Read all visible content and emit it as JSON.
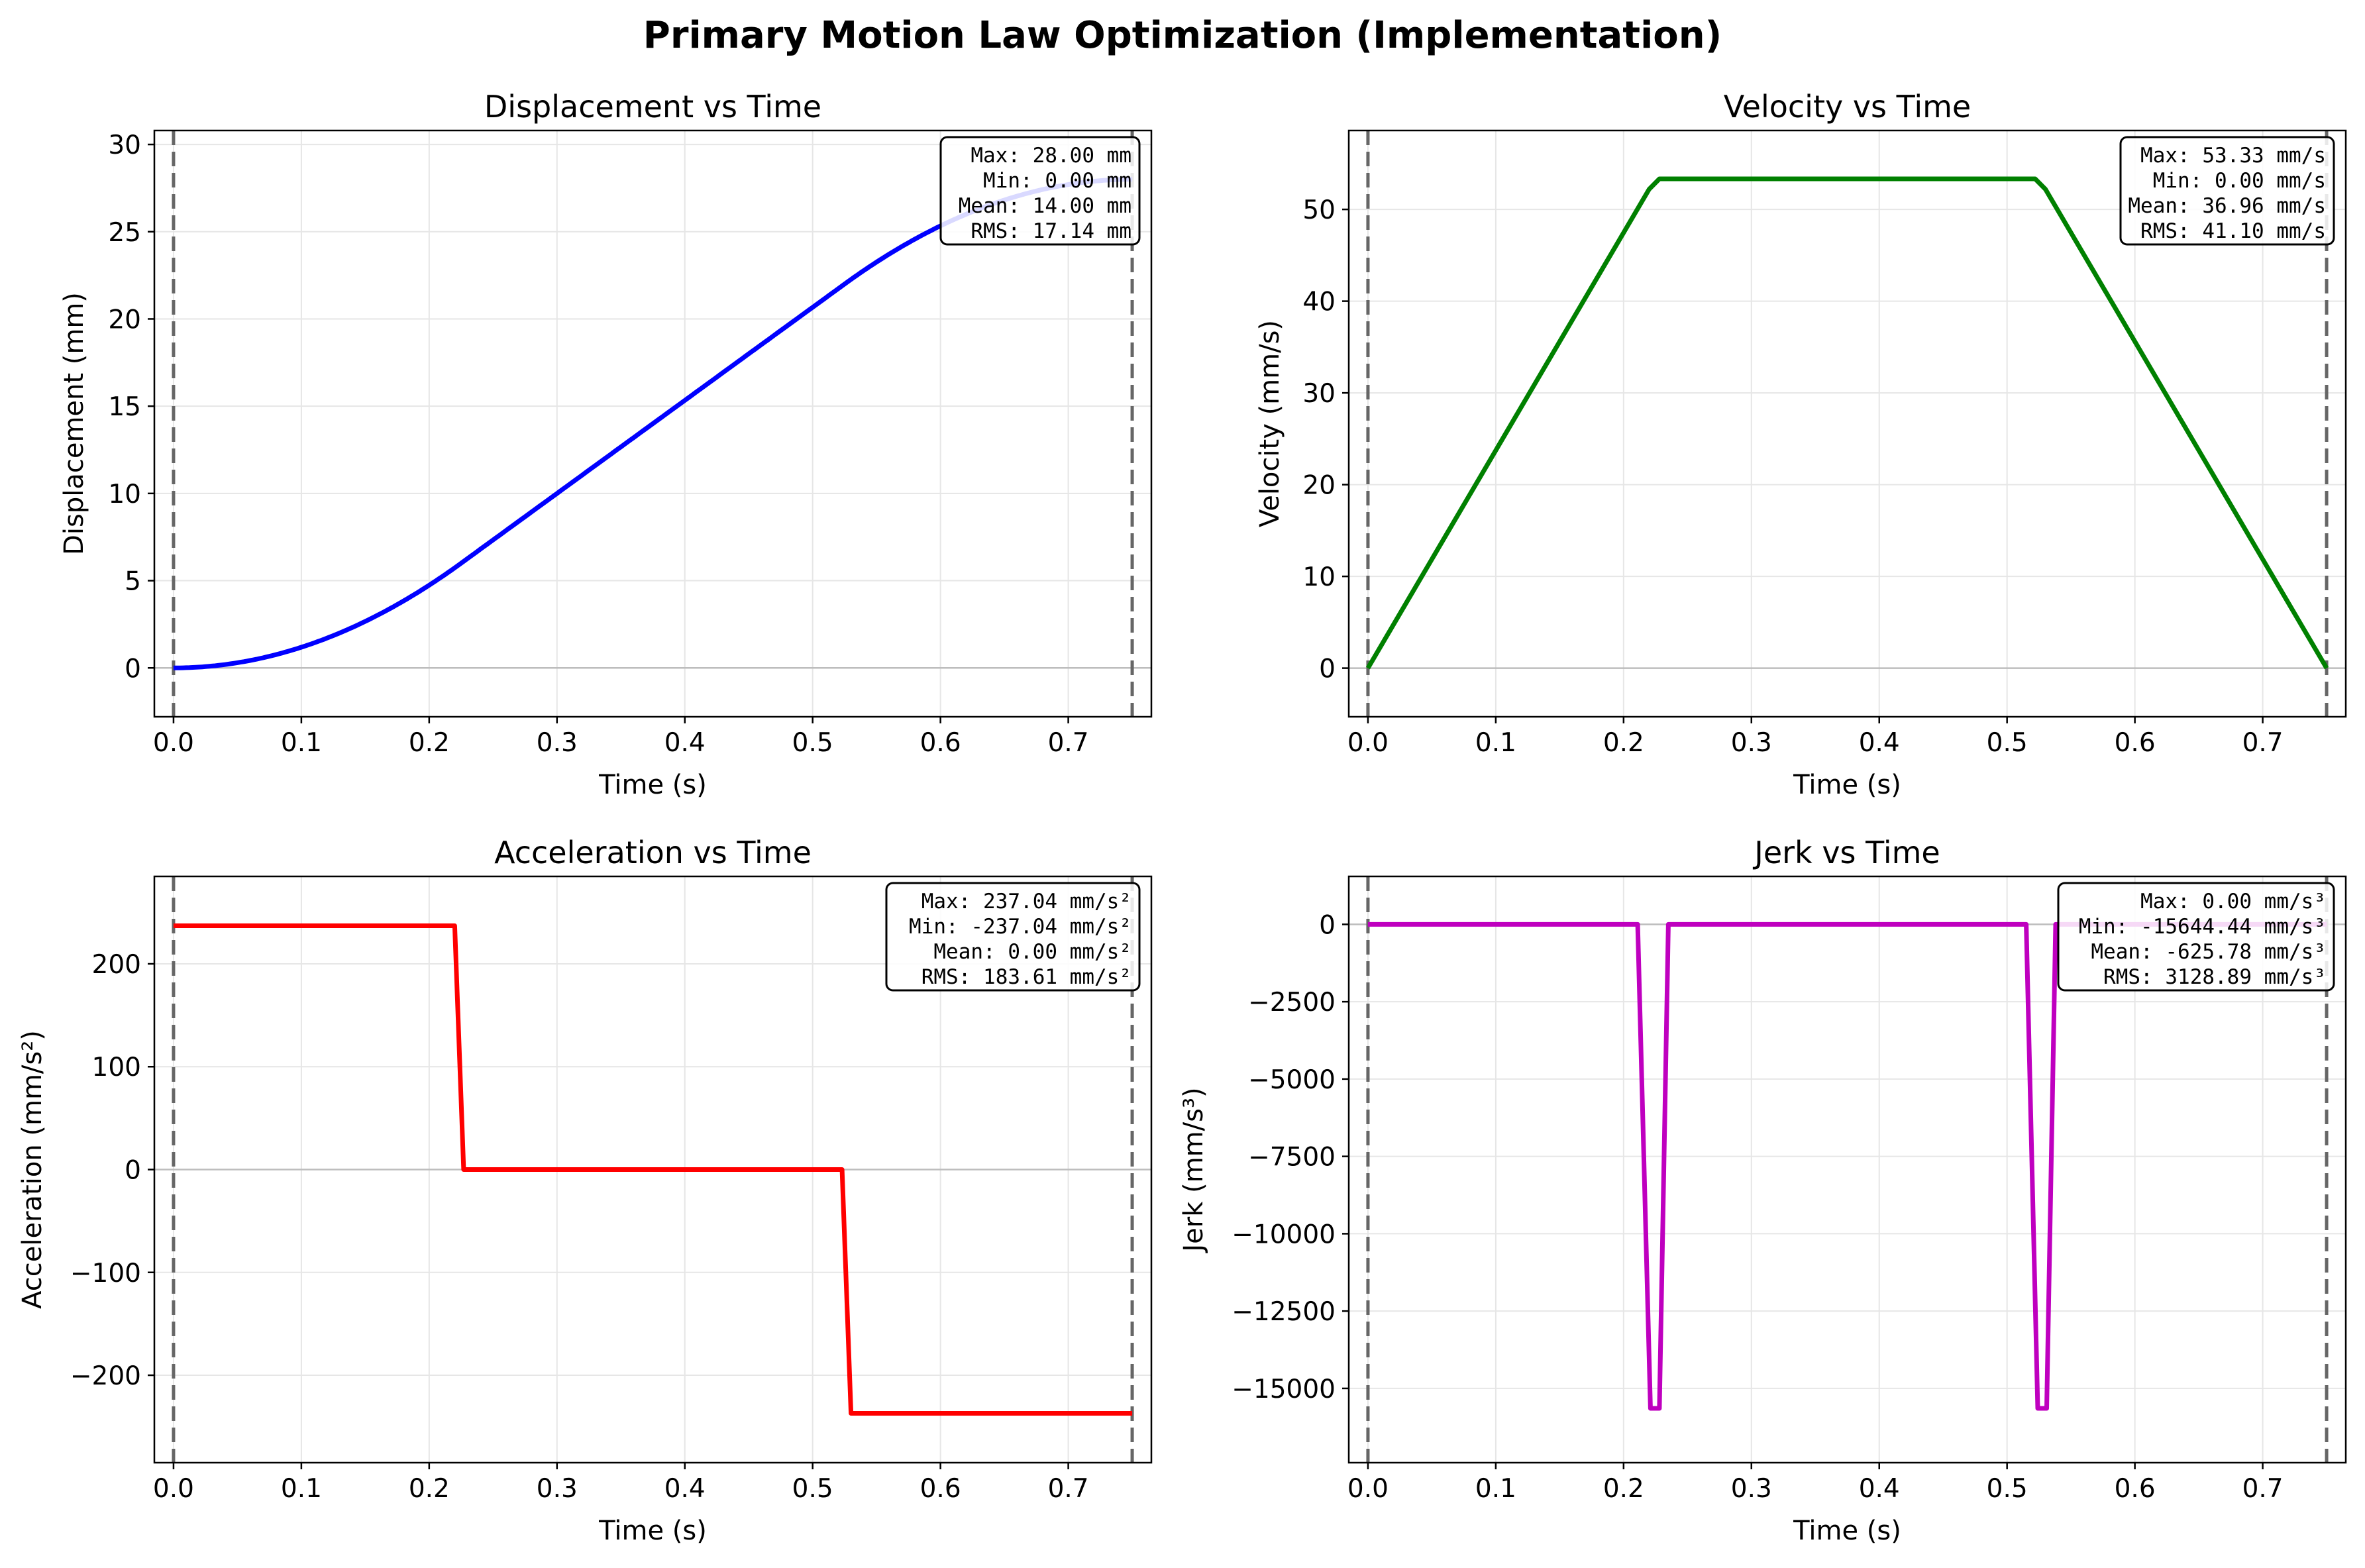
{
  "figure": {
    "title": "Primary Motion Law Optimization (Implementation)"
  },
  "colors": {
    "displacement": "#0000ff",
    "velocity": "#008000",
    "acceleration": "#ff0000",
    "jerk": "#bf00bf",
    "grid": "#e6e6e6",
    "marker": "#666666"
  },
  "chart_data": [
    {
      "type": "line",
      "title": "Displacement vs Time",
      "xlabel": "Time (s)",
      "ylabel": "Displacement (mm)",
      "xlim": [
        -0.015,
        0.765
      ],
      "ylim": [
        -2.8,
        30.8
      ],
      "xticks": [
        "0.0",
        "0.1",
        "0.2",
        "0.3",
        "0.4",
        "0.5",
        "0.6",
        "0.7"
      ],
      "xtick_values": [
        0,
        0.1,
        0.2,
        0.3,
        0.4,
        0.5,
        0.6,
        0.7
      ],
      "yticks": [
        "0",
        "5",
        "10",
        "15",
        "20",
        "25",
        "30"
      ],
      "ytick_values": [
        0,
        5,
        10,
        15,
        20,
        25,
        30
      ],
      "grid": true,
      "series": [
        {
          "color": "#0000ff",
          "x": [
            0,
            0.025,
            0.05,
            0.075,
            0.1,
            0.125,
            0.15,
            0.175,
            0.2,
            0.225,
            0.25,
            0.3,
            0.35,
            0.4,
            0.45,
            0.5,
            0.525,
            0.55,
            0.575,
            0.6,
            0.625,
            0.65,
            0.675,
            0.7,
            0.725,
            0.75
          ],
          "y": [
            0,
            0.07,
            0.3,
            0.67,
            1.19,
            1.85,
            2.67,
            3.63,
            4.74,
            6.0,
            7.33,
            10.0,
            12.67,
            15.33,
            18.0,
            20.67,
            22.0,
            23.26,
            24.37,
            25.33,
            26.15,
            26.81,
            27.33,
            27.7,
            27.93,
            28.0
          ]
        }
      ],
      "vlines": [
        0,
        0.75
      ],
      "hline": 0,
      "stats": [
        "Max: 28.00 mm",
        "Min: 0.00 mm",
        "Mean: 14.00 mm",
        "RMS: 17.14 mm"
      ]
    },
    {
      "type": "line",
      "title": "Velocity vs Time",
      "xlabel": "Time (s)",
      "ylabel": "Velocity (mm/s)",
      "xlim": [
        -0.015,
        0.765
      ],
      "ylim": [
        -5.3,
        58.6
      ],
      "xticks": [
        "0.0",
        "0.1",
        "0.2",
        "0.3",
        "0.4",
        "0.5",
        "0.6",
        "0.7"
      ],
      "xtick_values": [
        0,
        0.1,
        0.2,
        0.3,
        0.4,
        0.5,
        0.6,
        0.7
      ],
      "yticks": [
        "0",
        "10",
        "20",
        "30",
        "40",
        "50"
      ],
      "ytick_values": [
        0,
        10,
        20,
        30,
        40,
        50
      ],
      "grid": true,
      "series": [
        {
          "color": "#008000",
          "x": [
            0,
            0.22,
            0.228,
            0.522,
            0.53,
            0.75
          ],
          "y": [
            0,
            52.2,
            53.33,
            53.33,
            52.2,
            0
          ]
        }
      ],
      "vlines": [
        0,
        0.75
      ],
      "hline": 0,
      "stats": [
        "Max: 53.33 mm/s",
        "Min: 0.00 mm/s",
        "Mean: 36.96 mm/s",
        "RMS: 41.10 mm/s"
      ]
    },
    {
      "type": "line",
      "title": "Acceleration vs Time",
      "xlabel": "Time (s)",
      "ylabel": "Acceleration (mm/s²)",
      "xlim": [
        -0.015,
        0.765
      ],
      "ylim": [
        -285,
        285
      ],
      "xticks": [
        "0.0",
        "0.1",
        "0.2",
        "0.3",
        "0.4",
        "0.5",
        "0.6",
        "0.7"
      ],
      "xtick_values": [
        0,
        0.1,
        0.2,
        0.3,
        0.4,
        0.5,
        0.6,
        0.7
      ],
      "yticks": [
        "200",
        "100",
        "0",
        "−100",
        "−200"
      ],
      "ytick_values": [
        200,
        100,
        0,
        -100,
        -200
      ],
      "grid": true,
      "series": [
        {
          "color": "#ff0000",
          "x": [
            0,
            0.22,
            0.227,
            0.523,
            0.53,
            0.75
          ],
          "y": [
            237.04,
            237.04,
            0,
            0,
            -237.04,
            -237.04
          ]
        }
      ],
      "vlines": [
        0,
        0.75
      ],
      "hline": 0,
      "stats": [
        "Max: 237.04 mm/s²",
        "Min: -237.04 mm/s²",
        "Mean: 0.00 mm/s²",
        "RMS: 183.61 mm/s²"
      ]
    },
    {
      "type": "line",
      "title": "Jerk vs Time",
      "xlabel": "Time (s)",
      "ylabel": "Jerk (mm/s³)",
      "xlim": [
        -0.015,
        0.765
      ],
      "ylim": [
        -17400,
        1550
      ],
      "xticks": [
        "0.0",
        "0.1",
        "0.2",
        "0.3",
        "0.4",
        "0.5",
        "0.6",
        "0.7"
      ],
      "xtick_values": [
        0,
        0.1,
        0.2,
        0.3,
        0.4,
        0.5,
        0.6,
        0.7
      ],
      "yticks": [
        "0",
        "−2500",
        "−5000",
        "−7500",
        "−10000",
        "−12500",
        "−15000"
      ],
      "ytick_values": [
        0,
        -2500,
        -5000,
        -7500,
        -10000,
        -12500,
        -15000
      ],
      "grid": true,
      "series": [
        {
          "color": "#bf00bf",
          "x": [
            0,
            0.211,
            0.221,
            0.228,
            0.235,
            0.75
          ],
          "y": [
            0,
            0,
            -15644.44,
            -15644.44,
            0,
            0
          ],
          "x2": [
            0.515,
            0.524,
            0.531,
            0.538
          ]
        }
      ],
      "vlines": [
        0,
        0.75
      ],
      "hline": 0,
      "stats": [
        "Max: 0.00 mm/s³",
        "Min: -15644.44 mm/s³",
        "Mean: -625.78 mm/s³",
        "RMS: 3128.89 mm/s³"
      ]
    }
  ]
}
